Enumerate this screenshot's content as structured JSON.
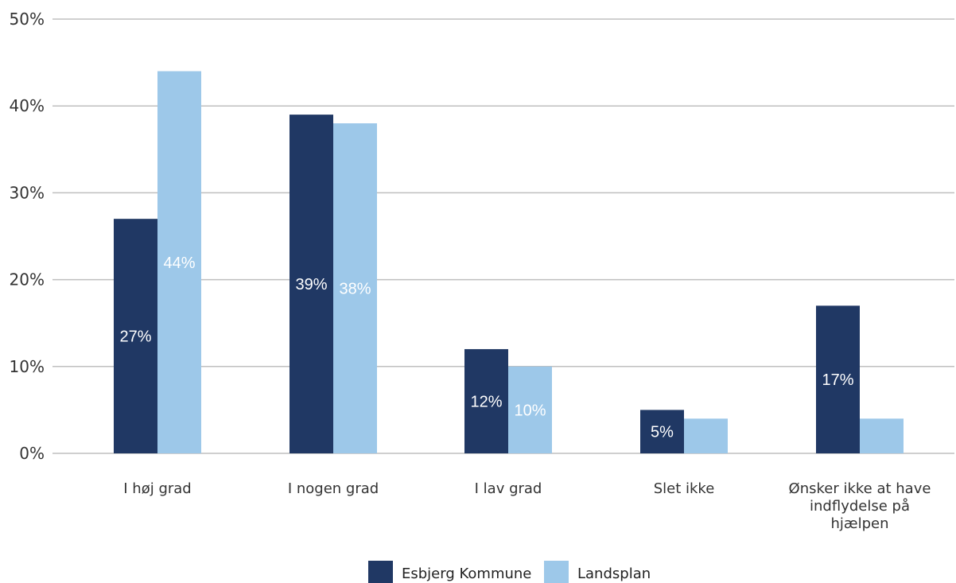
{
  "chart_data": {
    "type": "bar",
    "categories": [
      [
        "I høj grad"
      ],
      [
        "I nogen grad"
      ],
      [
        "I lav grad"
      ],
      [
        "Slet ikke"
      ],
      [
        "Ønsker ikke at have",
        "indflydelse på",
        "hjælpen"
      ]
    ],
    "series": [
      {
        "name": "Esbjerg Kommune",
        "color": "#203864",
        "values": [
          27,
          39,
          12,
          5,
          17
        ],
        "labels": [
          "27%",
          "39%",
          "12%",
          "5%",
          "17%"
        ]
      },
      {
        "name": "Landsplan",
        "color": "#9dc8e9",
        "values": [
          44,
          38,
          10,
          4,
          4
        ],
        "labels": [
          "44%",
          "38%",
          "10%",
          "",
          ""
        ]
      }
    ],
    "ylim": [
      0,
      50
    ],
    "yticks": [
      0,
      10,
      20,
      30,
      40,
      50
    ],
    "ytick_labels": [
      "0%",
      "10%",
      "20%",
      "30%",
      "40%",
      "50%"
    ],
    "grid": true,
    "legend_position": "bottom",
    "title": "",
    "xlabel": "",
    "ylabel": ""
  }
}
